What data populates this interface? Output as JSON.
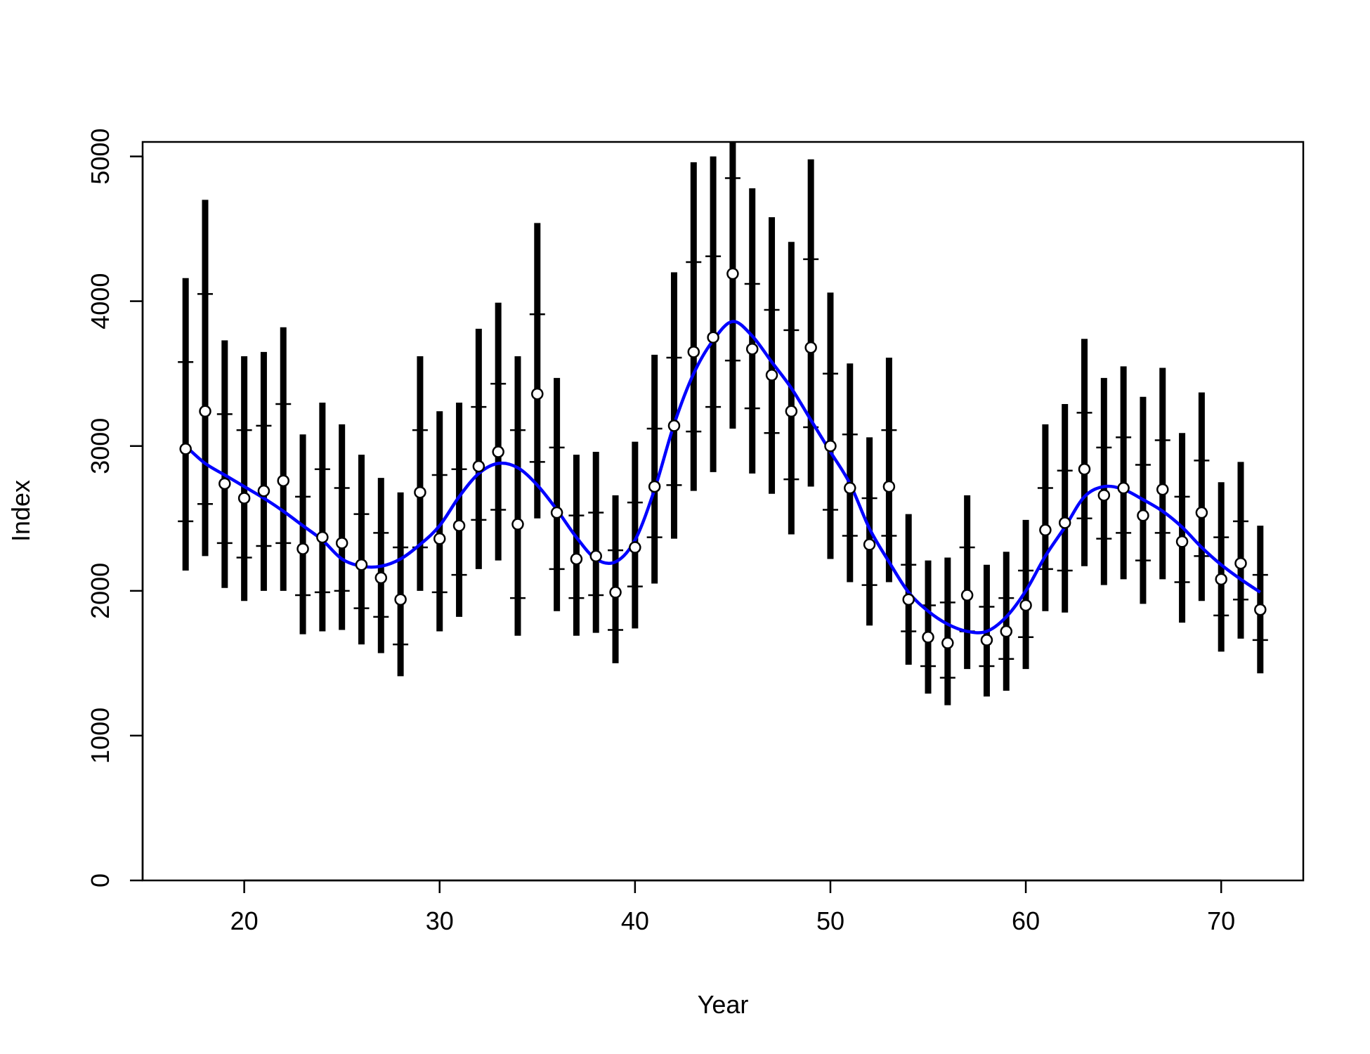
{
  "chart_data": {
    "type": "scatter",
    "title": "",
    "xlabel": "Year",
    "ylabel": "Index",
    "xlim": [
      14.8,
      74.2
    ],
    "ylim": [
      0,
      5100
    ],
    "x_ticks": [
      20,
      30,
      40,
      50,
      60,
      70
    ],
    "y_ticks": [
      0,
      1000,
      2000,
      3000,
      4000,
      5000
    ],
    "grid": false,
    "legend": "none",
    "colors": {
      "points": "#000000",
      "point_fill": "#ffffff",
      "error_bars": "#000000",
      "fit_line": "#0000ff"
    },
    "series": [
      {
        "kind": "points-with-intervals",
        "x": [
          17,
          18,
          19,
          20,
          21,
          22,
          23,
          24,
          25,
          26,
          27,
          28,
          29,
          30,
          31,
          32,
          33,
          34,
          35,
          36,
          37,
          38,
          39,
          40,
          41,
          42,
          43,
          44,
          45,
          46,
          47,
          48,
          49,
          50,
          51,
          52,
          53,
          54,
          55,
          56,
          57,
          58,
          59,
          60,
          61,
          62,
          63,
          64,
          65,
          66,
          67,
          68,
          69,
          70,
          71,
          72
        ],
        "y": [
          2980,
          3240,
          2740,
          2640,
          2690,
          2760,
          2290,
          2370,
          2330,
          2180,
          2090,
          1940,
          2680,
          2360,
          2450,
          2860,
          2960,
          2460,
          3360,
          2540,
          2220,
          2240,
          1990,
          2300,
          2720,
          3140,
          3650,
          3750,
          4190,
          3670,
          3490,
          3240,
          3680,
          3000,
          2710,
          2320,
          2720,
          1940,
          1680,
          1640,
          1970,
          1660,
          1720,
          1900,
          2420,
          2470,
          2840,
          2660,
          2710,
          2520,
          2700,
          2340,
          2540,
          2080,
          2190,
          1870
        ],
        "lower_95": [
          2140,
          2240,
          2020,
          1930,
          2000,
          2000,
          1700,
          1720,
          1730,
          1630,
          1570,
          1410,
          2000,
          1720,
          1820,
          2150,
          2210,
          1690,
          2500,
          1860,
          1690,
          1710,
          1500,
          1740,
          2050,
          2360,
          2690,
          2820,
          3120,
          2810,
          2670,
          2390,
          2720,
          2220,
          2060,
          1760,
          2060,
          1490,
          1290,
          1210,
          1460,
          1270,
          1310,
          1460,
          1860,
          1850,
          2170,
          2040,
          2080,
          1910,
          2080,
          1780,
          1930,
          1580,
          1670,
          1430
        ],
        "upper_95": [
          4160,
          4700,
          3730,
          3620,
          3650,
          3820,
          3080,
          3300,
          3150,
          2940,
          2780,
          2680,
          3620,
          3240,
          3300,
          3810,
          3990,
          3620,
          4540,
          3470,
          2940,
          2960,
          2660,
          3030,
          3630,
          4200,
          4960,
          5000,
          5100,
          4780,
          4580,
          4410,
          4980,
          4060,
          3570,
          3060,
          3610,
          2530,
          2210,
          2230,
          2660,
          2180,
          2270,
          2490,
          3150,
          3290,
          3740,
          3470,
          3550,
          3340,
          3540,
          3090,
          3370,
          2750,
          2890,
          2450
        ],
        "lower_ci_tick": [
          2480,
          2600,
          2330,
          2230,
          2310,
          2330,
          1970,
          1990,
          2000,
          1880,
          1820,
          1630,
          2300,
          1990,
          2110,
          2490,
          2560,
          1950,
          2890,
          2150,
          1950,
          1970,
          1730,
          2030,
          2370,
          2730,
          3100,
          3270,
          3590,
          3260,
          3090,
          2770,
          3130,
          2560,
          2380,
          2040,
          2380,
          1720,
          1480,
          1400,
          1720,
          1480,
          1530,
          1680,
          2150,
          2140,
          2500,
          2360,
          2400,
          2210,
          2400,
          2060,
          2240,
          1830,
          1940,
          1660
        ],
        "upper_ci_tick": [
          3580,
          4050,
          3220,
          3110,
          3140,
          3290,
          2650,
          2840,
          2710,
          2530,
          2400,
          2300,
          3110,
          2800,
          2840,
          3270,
          3430,
          3110,
          3910,
          2990,
          2520,
          2540,
          2280,
          2610,
          3120,
          3610,
          4270,
          4310,
          4850,
          4120,
          3940,
          3800,
          4290,
          3500,
          3080,
          2640,
          3110,
          2180,
          1900,
          1920,
          2300,
          1890,
          1950,
          2140,
          2710,
          2830,
          3230,
          2990,
          3060,
          2870,
          3040,
          2650,
          2900,
          2370,
          2480,
          2110
        ]
      },
      {
        "kind": "smooth-fit",
        "x": [
          17,
          18,
          19,
          20,
          21,
          22,
          23,
          24,
          25,
          26,
          27,
          28,
          29,
          30,
          31,
          32,
          33,
          34,
          35,
          36,
          37,
          38,
          39,
          40,
          41,
          42,
          43,
          44,
          45,
          46,
          47,
          48,
          49,
          50,
          51,
          52,
          53,
          54,
          55,
          56,
          57,
          58,
          59,
          60,
          61,
          62,
          63,
          64,
          65,
          66,
          67,
          68,
          69,
          70,
          71,
          72
        ],
        "y": [
          3000,
          2880,
          2800,
          2720,
          2640,
          2550,
          2450,
          2350,
          2220,
          2170,
          2170,
          2220,
          2320,
          2450,
          2650,
          2810,
          2880,
          2850,
          2730,
          2560,
          2370,
          2220,
          2200,
          2350,
          2700,
          3150,
          3500,
          3730,
          3860,
          3760,
          3580,
          3400,
          3180,
          2960,
          2740,
          2430,
          2200,
          1990,
          1860,
          1770,
          1720,
          1720,
          1820,
          2000,
          2240,
          2440,
          2650,
          2720,
          2700,
          2630,
          2550,
          2440,
          2300,
          2180,
          2080,
          1990
        ]
      }
    ]
  }
}
